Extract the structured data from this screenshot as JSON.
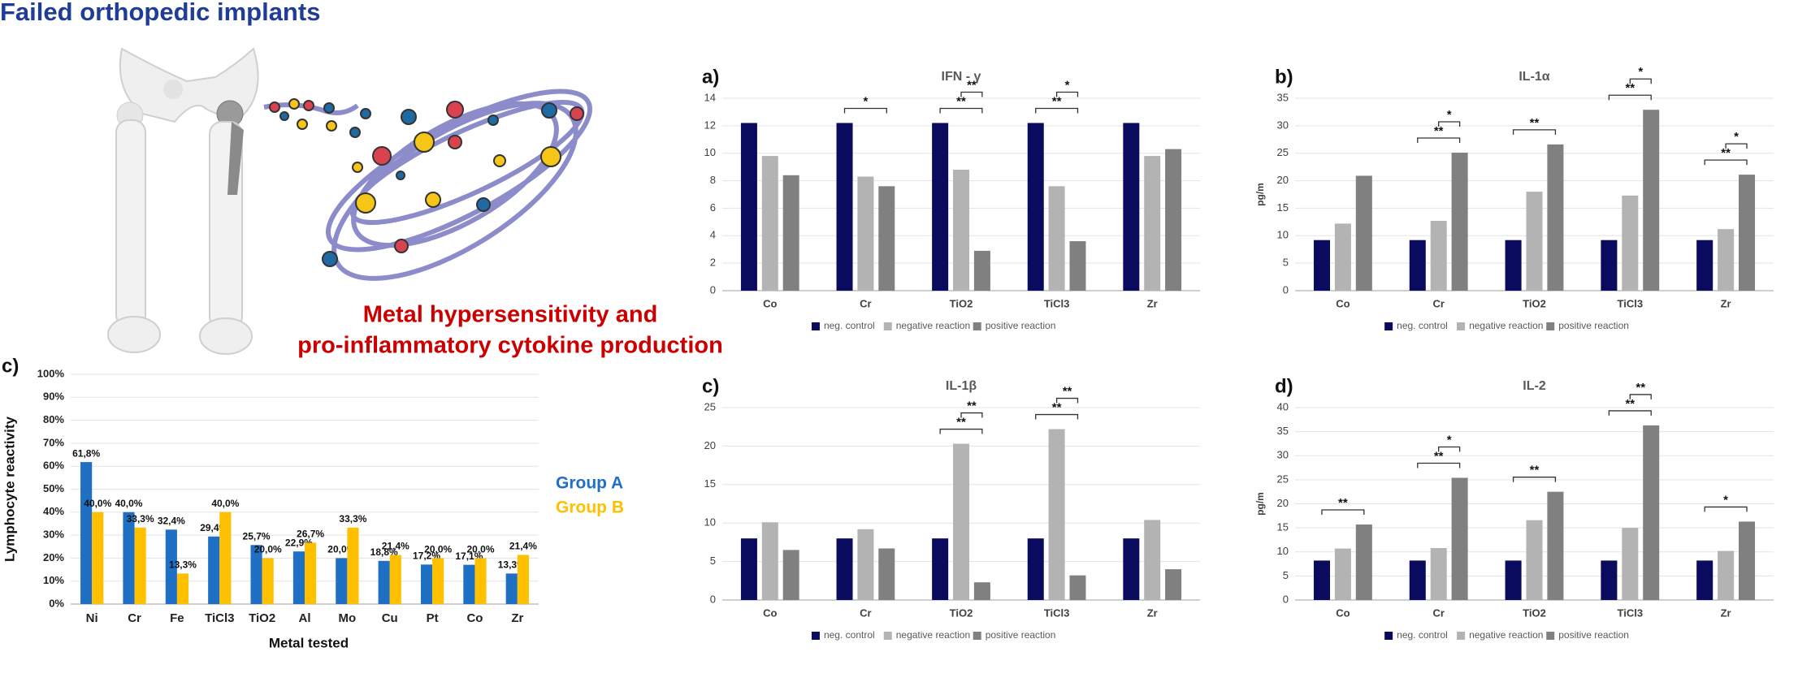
{
  "header": {
    "title": "Failed orthopedic implants"
  },
  "caption": [
    "Metal hypersensitivity and",
    "pro-inflammatory cytokine production"
  ],
  "chart_data": [
    {
      "type": "bar",
      "panel_label": "c)",
      "ylabel": "Lymphocyte reactivity",
      "xlabel": "Metal tested",
      "categories": [
        "Ni",
        "Cr",
        "Fe",
        "TiCl3",
        "TiO2",
        "Al",
        "Mo",
        "Cu",
        "Pt",
        "Co",
        "Zr"
      ],
      "series": [
        {
          "name": "Group A",
          "color": "#1f6fc5",
          "values": [
            61.8,
            40.0,
            32.4,
            29.4,
            25.7,
            22.9,
            20.0,
            18.8,
            17.2,
            17.1,
            13.3
          ],
          "value_labels": [
            "61,8%",
            "40,0%",
            "32,4%",
            "29,4%",
            "25,7%",
            "22,9%",
            "20,0%",
            "18,8%",
            "17,2%",
            "17,1%",
            "13,3%"
          ]
        },
        {
          "name": "Group B",
          "color": "#ffc000",
          "values": [
            40.0,
            33.3,
            13.3,
            40.0,
            20.0,
            26.7,
            33.3,
            21.4,
            20.0,
            20.0,
            21.4
          ],
          "value_labels": [
            "40,0%",
            "33,3%",
            "13,3%",
            "40,0%",
            "20,0%",
            "26,7%",
            "33,3%",
            "21,4%",
            "20,0%",
            "20,0%",
            "21,4%"
          ]
        }
      ],
      "ylim": [
        0,
        100
      ],
      "yticks": [
        {
          "value": 0,
          "label": "0%"
        },
        {
          "value": 10,
          "label": "10%"
        },
        {
          "value": 20,
          "label": "20%"
        },
        {
          "value": 30,
          "label": "30%"
        },
        {
          "value": 40,
          "label": "40%"
        },
        {
          "value": 50,
          "label": "50%"
        },
        {
          "value": 60,
          "label": "60%"
        },
        {
          "value": 70,
          "label": "70%"
        },
        {
          "value": 80,
          "label": "80%"
        },
        {
          "value": 90,
          "label": "90%"
        },
        {
          "value": 100,
          "label": "100%"
        }
      ],
      "grid": true
    },
    {
      "type": "bar",
      "panel_label": "a)",
      "title": "IFN - γ",
      "categories": [
        "Co",
        "Cr",
        "TiO2",
        "TiCl3",
        "Zr"
      ],
      "series": [
        {
          "name": "neg. control",
          "color": "#0a0a5e",
          "values": [
            12.2,
            12.2,
            12.2,
            12.2,
            12.2
          ]
        },
        {
          "name": "negative reaction",
          "color": "#b3b3b3",
          "values": [
            9.8,
            8.3,
            8.8,
            7.6,
            9.8
          ]
        },
        {
          "name": "positive reaction",
          "color": "#808080",
          "values": [
            8.4,
            7.6,
            2.9,
            3.6,
            10.3
          ]
        }
      ],
      "ylim": [
        0,
        14
      ],
      "yticks": [
        0,
        2,
        4,
        6,
        8,
        10,
        12,
        14
      ],
      "grid": true,
      "annotations": [
        "*",
        "**",
        "**",
        "**",
        "*"
      ]
    },
    {
      "type": "bar",
      "panel_label": "b)",
      "title": "IL-1α",
      "ylabel": "pg/m",
      "categories": [
        "Co",
        "Cr",
        "TiO2",
        "TiCl3",
        "Zr"
      ],
      "series": [
        {
          "name": "neg. control",
          "color": "#0a0a5e",
          "values": [
            9.2,
            9.2,
            9.2,
            9.2,
            9.2
          ]
        },
        {
          "name": "negative reaction",
          "color": "#b3b3b3",
          "values": [
            12.2,
            12.7,
            18.0,
            17.3,
            11.2
          ]
        },
        {
          "name": "positive reaction",
          "color": "#808080",
          "values": [
            20.9,
            25.1,
            26.6,
            32.9,
            21.1
          ]
        }
      ],
      "ylim": [
        0,
        35
      ],
      "yticks": [
        0,
        5,
        10,
        15,
        20,
        25,
        30,
        35
      ],
      "grid": true,
      "annotations": [
        "**",
        "*",
        "**",
        "**",
        "*",
        "**",
        "*"
      ]
    },
    {
      "type": "bar",
      "panel_label": "c)",
      "title": "IL-1β",
      "categories": [
        "Co",
        "Cr",
        "TiO2",
        "TiCl3",
        "Zr"
      ],
      "series": [
        {
          "name": "neg. control",
          "color": "#0a0a5e",
          "values": [
            8.0,
            8.0,
            8.0,
            8.0,
            8.0
          ]
        },
        {
          "name": "negative reaction",
          "color": "#b3b3b3",
          "values": [
            10.1,
            9.2,
            20.3,
            22.2,
            10.4
          ]
        },
        {
          "name": "positive reaction",
          "color": "#808080",
          "values": [
            6.5,
            6.7,
            2.3,
            3.2,
            4.0
          ]
        }
      ],
      "ylim": [
        0,
        25
      ],
      "yticks": [
        0,
        5,
        10,
        15,
        20,
        25
      ],
      "grid": true,
      "annotations": [
        "**",
        "**",
        "**",
        "**"
      ]
    },
    {
      "type": "bar",
      "panel_label": "d)",
      "title": "IL-2",
      "ylabel": "pg/m",
      "categories": [
        "Co",
        "Cr",
        "TiO2",
        "TiCl3",
        "Zr"
      ],
      "series": [
        {
          "name": "neg. control",
          "color": "#0a0a5e",
          "values": [
            8.2,
            8.2,
            8.2,
            8.2,
            8.2
          ]
        },
        {
          "name": "negative reaction",
          "color": "#b3b3b3",
          "values": [
            10.7,
            10.8,
            16.6,
            15.0,
            10.2
          ]
        },
        {
          "name": "positive reaction",
          "color": "#808080",
          "values": [
            15.7,
            25.4,
            22.5,
            36.3,
            16.3
          ]
        }
      ],
      "ylim": [
        0,
        40
      ],
      "yticks": [
        0,
        5,
        10,
        15,
        20,
        25,
        30,
        35,
        40
      ],
      "grid": true,
      "annotations": [
        "**",
        "**",
        "*",
        "**",
        "**",
        "**",
        "*"
      ]
    }
  ]
}
